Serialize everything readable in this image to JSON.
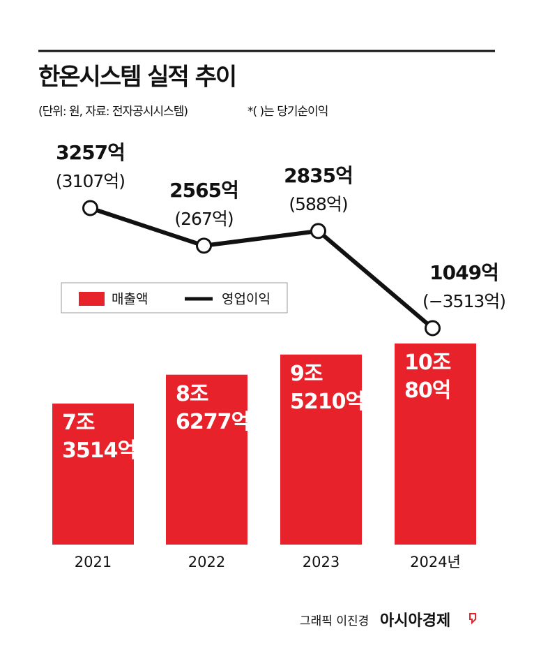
{
  "chart_data": {
    "type": "bar-line",
    "title": "한온시스템 실적 추이",
    "subtitle": "(단위: 원, 자료: 전자공시시스템)",
    "note": "*( )는 당기순이익",
    "categories": [
      "2021",
      "2022",
      "2023",
      "2024년"
    ],
    "series": [
      {
        "name": "매출액",
        "type": "bar",
        "color": "#e8222a",
        "values": [
          73514,
          86277,
          95210,
          100080
        ],
        "value_labels": [
          "7조\n3514억",
          "8조\n6277억",
          "9조\n5210억",
          "10조\n80억"
        ]
      },
      {
        "name": "영업이익",
        "type": "line",
        "color": "#111111",
        "values": [
          3257,
          2565,
          2835,
          1049
        ],
        "value_labels": [
          "3257억",
          "2565억",
          "2835억",
          "1049억"
        ]
      }
    ],
    "net_income": {
      "values": [
        3107,
        267,
        588,
        -3513
      ],
      "value_labels": [
        "(3107억)",
        "(267억)",
        "(588억)",
        "(−3513억)"
      ]
    },
    "credit": "그래픽 이진경",
    "source_logo": "아시아경제"
  }
}
